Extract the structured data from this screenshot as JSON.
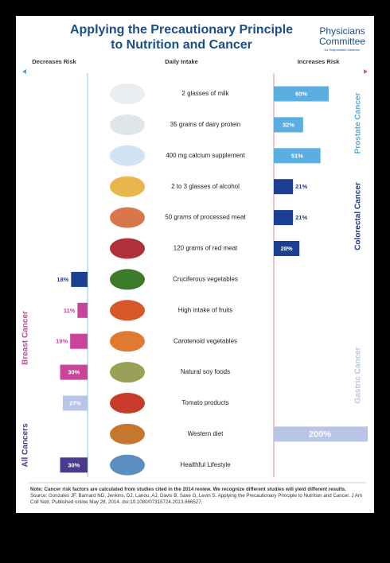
{
  "chart_data": {
    "type": "diverging-bar",
    "title": [
      "Applying the Precautionary Principle",
      "to Nutrition and Cancer"
    ],
    "logo": [
      "Physicians",
      "Committee",
      "for Responsible Medicine"
    ],
    "headers": {
      "left": "Decreases Risk",
      "center": "Daily Intake",
      "right": "Increases Risk"
    },
    "rows": [
      {
        "intake": "2 glasses of milk",
        "value": 60,
        "value_label": "60%",
        "side": "increase",
        "color": "#5aaee0"
      },
      {
        "intake": "35 grams of dairy protein",
        "value": 32,
        "value_label": "32%",
        "side": "increase",
        "color": "#5aaee0"
      },
      {
        "intake": "400 mg calcium supplement",
        "value": 51,
        "value_label": "51%",
        "side": "increase",
        "color": "#5aaee0"
      },
      {
        "intake": "2 to 3 glasses of alcohol",
        "value": 21,
        "value_label": "21%",
        "side": "increase",
        "color": "#1c3f94"
      },
      {
        "intake": "50 grams of processed meat",
        "value": 21,
        "value_label": "21%",
        "side": "increase",
        "color": "#1c3f94"
      },
      {
        "intake": "120 grams of red meat",
        "value": 28,
        "value_label": "28%",
        "side": "increase",
        "color": "#1c3f94"
      },
      {
        "intake": "Cruciferous vegetables",
        "value": 18,
        "value_label": "18%",
        "side": "decrease",
        "color": "#1c3f94"
      },
      {
        "intake": "High intake of fruits",
        "value": 11,
        "value_label": "11%",
        "side": "decrease",
        "color": "#c9449a"
      },
      {
        "intake": "Carotenoid vegetables",
        "value": 19,
        "value_label": "19%",
        "side": "decrease",
        "color": "#c9449a"
      },
      {
        "intake": "Natural soy foods",
        "value": 30,
        "value_label": "30%",
        "side": "decrease",
        "color": "#c9449a"
      },
      {
        "intake": "Tomato products",
        "value": 27,
        "value_label": "27%",
        "side": "decrease",
        "color": "#b9c5e6"
      },
      {
        "intake": "Western diet",
        "value": 200,
        "value_label": "200%",
        "side": "increase",
        "color": "#b9c5e6"
      },
      {
        "intake": "Healthful Lifestyle",
        "value": 30,
        "value_label": "30%",
        "side": "decrease",
        "color": "#4b3b8f"
      }
    ],
    "groups": [
      {
        "name": "Prostate Cancer",
        "color": "#5aaee0"
      },
      {
        "name": "Colorectal Cancer",
        "color": "#1c3f94"
      },
      {
        "name": "Gastric Cancer",
        "color": "#b9c5e6"
      },
      {
        "name": "Breast Cancer",
        "color": "#c9449a"
      },
      {
        "name": "All Cancers",
        "color": "#4b3b8f"
      }
    ],
    "note": "Note: Cancer risk factors are calculated from studies cited in the 2014 review. We recognize different studies will yield different results.",
    "source": "Source: Gonzales JF, Barnard ND, Jenkins, DJ, Lanou, AJ, Davis B, Saxe G, Levin S. Applying the Precautionary Principle to Nutrition and Cancer. J Am Coll Nutr. Published online May 28, 2014. doi:10.1080/07315724.2013.866527."
  }
}
